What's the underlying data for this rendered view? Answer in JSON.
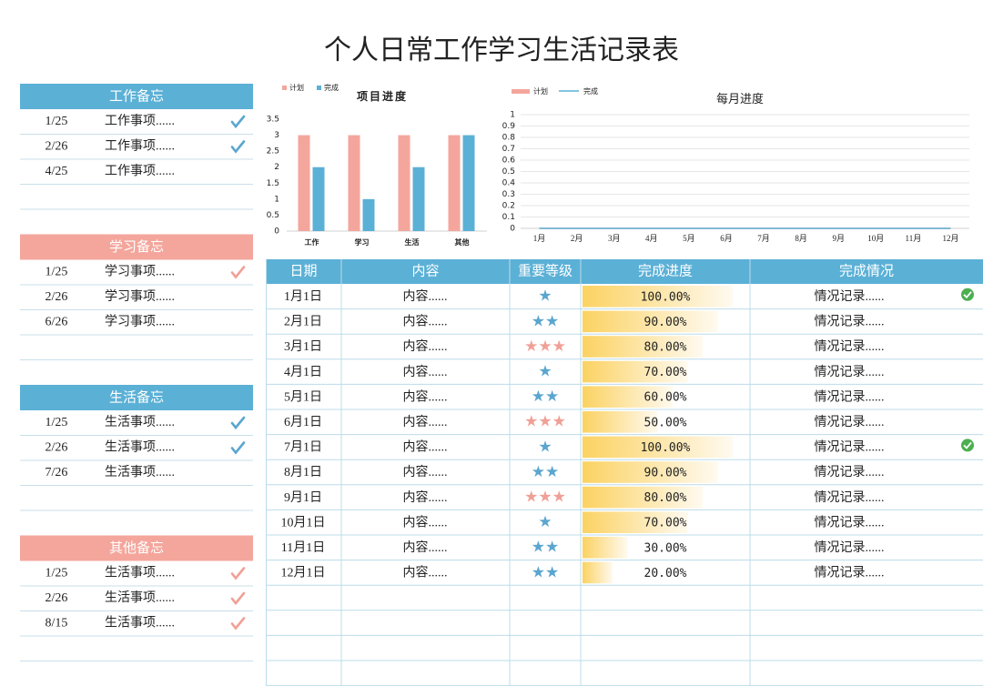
{
  "title": "个人日常工作学习生活记录表",
  "memos": [
    {
      "title": "工作备忘",
      "color": "#5bb0d6",
      "check_color": "#5aa6cf",
      "items": [
        {
          "date": "1/25",
          "text": "工作事项......",
          "done": true
        },
        {
          "date": "2/26",
          "text": "工作事项......",
          "done": true
        },
        {
          "date": "4/25",
          "text": "工作事项......",
          "done": false
        }
      ]
    },
    {
      "title": "学习备忘",
      "color": "#f4a69c",
      "check_color": "#f0a096",
      "items": [
        {
          "date": "1/25",
          "text": "学习事项......",
          "done": true
        },
        {
          "date": "2/26",
          "text": "学习事项......",
          "done": false
        },
        {
          "date": "6/26",
          "text": "学习事项......",
          "done": false
        }
      ]
    },
    {
      "title": "生活备忘",
      "color": "#5bb0d6",
      "check_color": "#5aa6cf",
      "items": [
        {
          "date": "1/25",
          "text": "生活事项......",
          "done": true
        },
        {
          "date": "2/26",
          "text": "生活事项......",
          "done": true
        },
        {
          "date": "7/26",
          "text": "生活事项......",
          "done": false
        }
      ]
    },
    {
      "title": "其他备忘",
      "color": "#f4a69c",
      "check_color": "#f0a096",
      "items": [
        {
          "date": "1/25",
          "text": "生活事项......",
          "done": true
        },
        {
          "date": "2/26",
          "text": "生活事项......",
          "done": true
        },
        {
          "date": "8/15",
          "text": "生活事项......",
          "done": true
        }
      ]
    }
  ],
  "chart_data": [
    {
      "type": "bar",
      "title": "项目进度",
      "categories": [
        "工作",
        "学习",
        "生活",
        "其他"
      ],
      "series": [
        {
          "name": "计划",
          "color": "#f4a69c",
          "values": [
            3,
            3,
            3,
            3
          ]
        },
        {
          "name": "完成",
          "color": "#5bb0d6",
          "values": [
            2,
            1,
            2,
            3
          ]
        }
      ],
      "ylim": [
        0,
        3.5
      ],
      "yticks": [
        0,
        0.5,
        1,
        1.5,
        2,
        2.5,
        3,
        3.5
      ],
      "grid": false,
      "legend": "top-left"
    },
    {
      "type": "line",
      "title": "每月进度",
      "categories": [
        "1月",
        "2月",
        "3月",
        "4月",
        "5月",
        "6月",
        "7月",
        "8月",
        "9月",
        "10月",
        "11月",
        "12月"
      ],
      "series": [
        {
          "name": "计划",
          "color": "#f4a69c",
          "values": [
            0,
            0,
            0,
            0,
            0,
            0,
            0,
            0,
            0,
            0,
            0,
            0
          ]
        },
        {
          "name": "完成",
          "color": "#5bb0d6",
          "values": [
            0,
            0,
            0,
            0,
            0,
            0,
            0,
            0,
            0,
            0,
            0,
            0
          ]
        }
      ],
      "ylim": [
        0,
        1
      ],
      "yticks": [
        0,
        0.1,
        0.2,
        0.3,
        0.4,
        0.5,
        0.6,
        0.7,
        0.8,
        0.9,
        1
      ],
      "grid": true,
      "legend": "top-left"
    }
  ],
  "table": {
    "headers": [
      "日期",
      "内容",
      "重要等级",
      "完成进度",
      "完成情况"
    ],
    "rows": [
      {
        "date": "1月1日",
        "content": "内容......",
        "stars": "★",
        "progress": 100,
        "progress_label": "100.00%",
        "status": "情况记录......",
        "done": true
      },
      {
        "date": "2月1日",
        "content": "内容......",
        "stars": "★★",
        "progress": 90,
        "progress_label": "90.00%",
        "status": "情况记录......",
        "done": false
      },
      {
        "date": "3月1日",
        "content": "内容......",
        "stars": "★★★",
        "progress": 80,
        "progress_label": "80.00%",
        "status": "情况记录......",
        "done": false
      },
      {
        "date": "4月1日",
        "content": "内容......",
        "stars": "★",
        "progress": 70,
        "progress_label": "70.00%",
        "status": "情况记录......",
        "done": false
      },
      {
        "date": "5月1日",
        "content": "内容......",
        "stars": "★★",
        "progress": 60,
        "progress_label": "60.00%",
        "status": "情况记录......",
        "done": false
      },
      {
        "date": "6月1日",
        "content": "内容......",
        "stars": "★★★",
        "progress": 50,
        "progress_label": "50.00%",
        "status": "情况记录......",
        "done": false
      },
      {
        "date": "7月1日",
        "content": "内容......",
        "stars": "★",
        "progress": 100,
        "progress_label": "100.00%",
        "status": "情况记录......",
        "done": true
      },
      {
        "date": "8月1日",
        "content": "内容......",
        "stars": "★★",
        "progress": 90,
        "progress_label": "90.00%",
        "status": "情况记录......",
        "done": false
      },
      {
        "date": "9月1日",
        "content": "内容......",
        "stars": "★★★",
        "progress": 80,
        "progress_label": "80.00%",
        "status": "情况记录......",
        "done": false
      },
      {
        "date": "10月1日",
        "content": "内容......",
        "stars": "★",
        "progress": 70,
        "progress_label": "70.00%",
        "status": "情况记录......",
        "done": false
      },
      {
        "date": "11月1日",
        "content": "内容......",
        "stars": "★★",
        "progress": 30,
        "progress_label": "30.00%",
        "status": "情况记录......",
        "done": false
      },
      {
        "date": "12月1日",
        "content": "内容......",
        "stars": "★★",
        "progress": 20,
        "progress_label": "20.00%",
        "status": "情况记录......",
        "done": false
      }
    ]
  }
}
